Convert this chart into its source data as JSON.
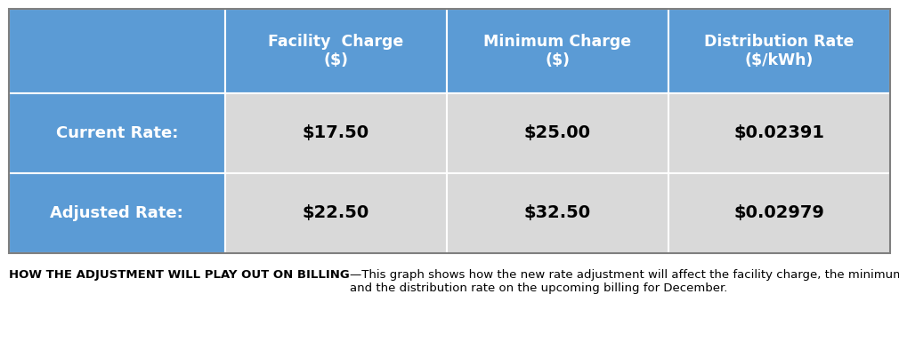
{
  "col_headers": [
    "Facility  Charge\n($)",
    "Minimum Charge\n($)",
    "Distribution Rate\n($/kWh)"
  ],
  "row_labels": [
    "Current Rate:",
    "Adjusted Rate:"
  ],
  "cell_values": [
    [
      "$17.50",
      "$25.00",
      "$0.02391"
    ],
    [
      "$22.50",
      "$32.50",
      "$0.02979"
    ]
  ],
  "header_bg_color": "#5B9BD5",
  "header_text_color": "#FFFFFF",
  "row_label_bg_color": "#5B9BD5",
  "row_label_text_color": "#FFFFFF",
  "cell_bg_color": "#D9D9D9",
  "cell_text_color": "#000000",
  "border_color": "#FFFFFF",
  "outer_border_color": "#7F7F7F",
  "caption_bold_text": "HOW THE ADJUSTMENT WILL PLAY OUT ON BILLING",
  "caption_dash": "—",
  "caption_normal_text": "This graph shows how the new rate adjustment will affect the facility charge, the minimum charge\nand the distribution rate on the upcoming billing for December.",
  "background_color": "#FFFFFF",
  "header_fontsize": 12.5,
  "row_label_fontsize": 13,
  "cell_fontsize": 14,
  "caption_fontsize": 9.5
}
